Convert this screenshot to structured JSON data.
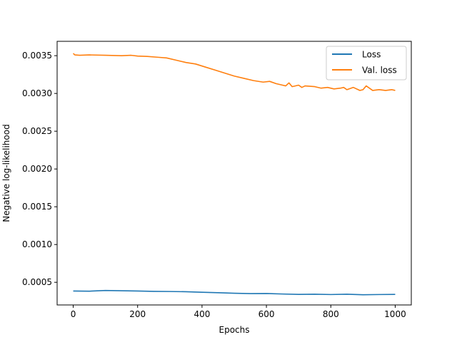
{
  "chart_data": {
    "type": "line",
    "title": "",
    "xlabel": "Epochs",
    "ylabel": "Negative log-likelihood",
    "xlim": [
      -50,
      1050
    ],
    "ylim": [
      0.0002,
      0.00369
    ],
    "xticks": [
      0,
      200,
      400,
      600,
      800,
      1000
    ],
    "xtick_labels": [
      "0",
      "200",
      "400",
      "600",
      "800",
      "1000"
    ],
    "yticks": [
      0.0005,
      0.001,
      0.0015,
      0.002,
      0.0025,
      0.003,
      0.0035
    ],
    "ytick_labels": [
      "0.0005",
      "0.0010",
      "0.0015",
      "0.0020",
      "0.0025",
      "0.0030",
      "0.0035"
    ],
    "grid": false,
    "legend_position": "top-right",
    "series": [
      {
        "name": "Loss",
        "color": "#1f77b4",
        "x": [
          0,
          50,
          100,
          150,
          200,
          250,
          300,
          350,
          400,
          450,
          500,
          550,
          600,
          650,
          700,
          750,
          800,
          850,
          900,
          950,
          1000
        ],
        "values": [
          0.000385,
          0.000382,
          0.000392,
          0.000388,
          0.000385,
          0.00038,
          0.000378,
          0.000375,
          0.000368,
          0.000362,
          0.000355,
          0.00035,
          0.000352,
          0.000345,
          0.00034,
          0.000342,
          0.000338,
          0.000342,
          0.000335,
          0.000338,
          0.00034
        ]
      },
      {
        "name": "Val. loss",
        "color": "#ff7f0e",
        "x": [
          0,
          5,
          20,
          50,
          100,
          150,
          180,
          200,
          230,
          260,
          290,
          320,
          350,
          380,
          410,
          440,
          470,
          500,
          530,
          560,
          590,
          610,
          630,
          650,
          660,
          670,
          680,
          700,
          710,
          720,
          750,
          770,
          790,
          810,
          830,
          840,
          850,
          870,
          890,
          900,
          910,
          930,
          950,
          970,
          990,
          1000
        ],
        "values": [
          0.00353,
          0.00351,
          0.003505,
          0.00351,
          0.003505,
          0.0035,
          0.003505,
          0.003495,
          0.00349,
          0.00348,
          0.00347,
          0.00344,
          0.00341,
          0.00339,
          0.00335,
          0.00331,
          0.00327,
          0.00323,
          0.0032,
          0.00317,
          0.00315,
          0.00316,
          0.00313,
          0.00311,
          0.0031,
          0.00314,
          0.00309,
          0.00311,
          0.00308,
          0.0031,
          0.00309,
          0.00307,
          0.00308,
          0.00306,
          0.00307,
          0.00308,
          0.00305,
          0.00308,
          0.00304,
          0.00305,
          0.0031,
          0.00304,
          0.00305,
          0.00304,
          0.00305,
          0.00304
        ]
      }
    ]
  }
}
